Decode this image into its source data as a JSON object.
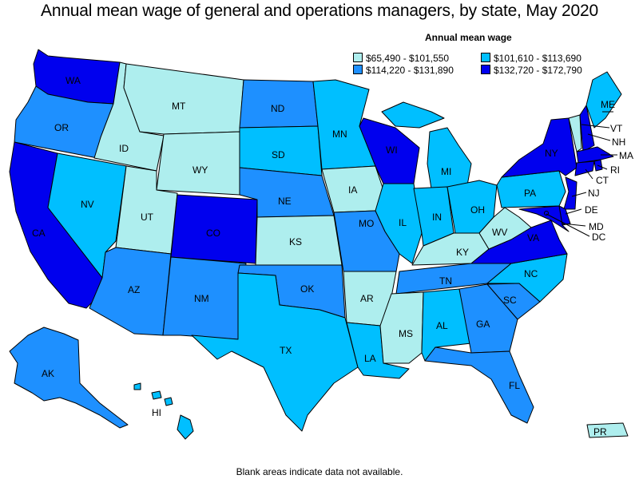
{
  "title": "Annual mean wage of general and operations managers, by state, May 2020",
  "legend": {
    "title": "Annual mean wage",
    "items": [
      {
        "label": "$65,490 - $101,550",
        "color": "#aeeeee"
      },
      {
        "label": "$114,220 - $131,890",
        "color": "#1e90ff"
      },
      {
        "label": "$101,610 - $113,690",
        "color": "#00bfff"
      },
      {
        "label": "$132,720 - $172,790",
        "color": "#0000ee"
      }
    ]
  },
  "footnote": "Blank areas indicate data not available.",
  "states": {
    "WA": {
      "label": "WA",
      "tier": 4
    },
    "OR": {
      "label": "OR",
      "tier": 3
    },
    "CA": {
      "label": "CA",
      "tier": 4
    },
    "ID": {
      "label": "ID",
      "tier": 1
    },
    "NV": {
      "label": "NV",
      "tier": 2
    },
    "MT": {
      "label": "MT",
      "tier": 1
    },
    "WY": {
      "label": "WY",
      "tier": 1
    },
    "UT": {
      "label": "UT",
      "tier": 1
    },
    "AZ": {
      "label": "AZ",
      "tier": 3
    },
    "CO": {
      "label": "CO",
      "tier": 4
    },
    "NM": {
      "label": "NM",
      "tier": 3
    },
    "ND": {
      "label": "ND",
      "tier": 3
    },
    "SD": {
      "label": "SD",
      "tier": 2
    },
    "NE": {
      "label": "NE",
      "tier": 3
    },
    "KS": {
      "label": "KS",
      "tier": 1
    },
    "OK": {
      "label": "OK",
      "tier": 3
    },
    "TX": {
      "label": "TX",
      "tier": 2
    },
    "MN": {
      "label": "MN",
      "tier": 2
    },
    "IA": {
      "label": "IA",
      "tier": 1
    },
    "MO": {
      "label": "MO",
      "tier": 3
    },
    "AR": {
      "label": "AR",
      "tier": 1
    },
    "LA": {
      "label": "LA",
      "tier": 2
    },
    "WI": {
      "label": "WI",
      "tier": 4
    },
    "IL": {
      "label": "IL",
      "tier": 2
    },
    "MI": {
      "label": "MI",
      "tier": 2
    },
    "IN": {
      "label": "IN",
      "tier": 2
    },
    "OH": {
      "label": "OH",
      "tier": 2
    },
    "KY": {
      "label": "KY",
      "tier": 1
    },
    "TN": {
      "label": "TN",
      "tier": 3
    },
    "MS": {
      "label": "MS",
      "tier": 1
    },
    "AL": {
      "label": "AL",
      "tier": 2
    },
    "GA": {
      "label": "GA",
      "tier": 3
    },
    "FL": {
      "label": "FL",
      "tier": 3
    },
    "SC": {
      "label": "SC",
      "tier": 3
    },
    "NC": {
      "label": "NC",
      "tier": 2
    },
    "VA": {
      "label": "VA",
      "tier": 4
    },
    "WV": {
      "label": "WV",
      "tier": 1
    },
    "PA": {
      "label": "PA",
      "tier": 2
    },
    "NY": {
      "label": "NY",
      "tier": 4
    },
    "VT": {
      "label": "VT",
      "tier": 1
    },
    "NH": {
      "label": "NH",
      "tier": 4
    },
    "ME": {
      "label": "ME",
      "tier": 2
    },
    "MA": {
      "label": "MA",
      "tier": 4
    },
    "RI": {
      "label": "RI",
      "tier": 4
    },
    "CT": {
      "label": "CT",
      "tier": 4
    },
    "NJ": {
      "label": "NJ",
      "tier": 4
    },
    "DE": {
      "label": "DE",
      "tier": 4
    },
    "MD": {
      "label": "MD",
      "tier": 4
    },
    "DC": {
      "label": "DC",
      "tier": 4
    },
    "AK": {
      "label": "AK",
      "tier": 3
    },
    "HI": {
      "label": "HI",
      "tier": 2
    },
    "PR": {
      "label": "PR",
      "tier": 1
    }
  }
}
